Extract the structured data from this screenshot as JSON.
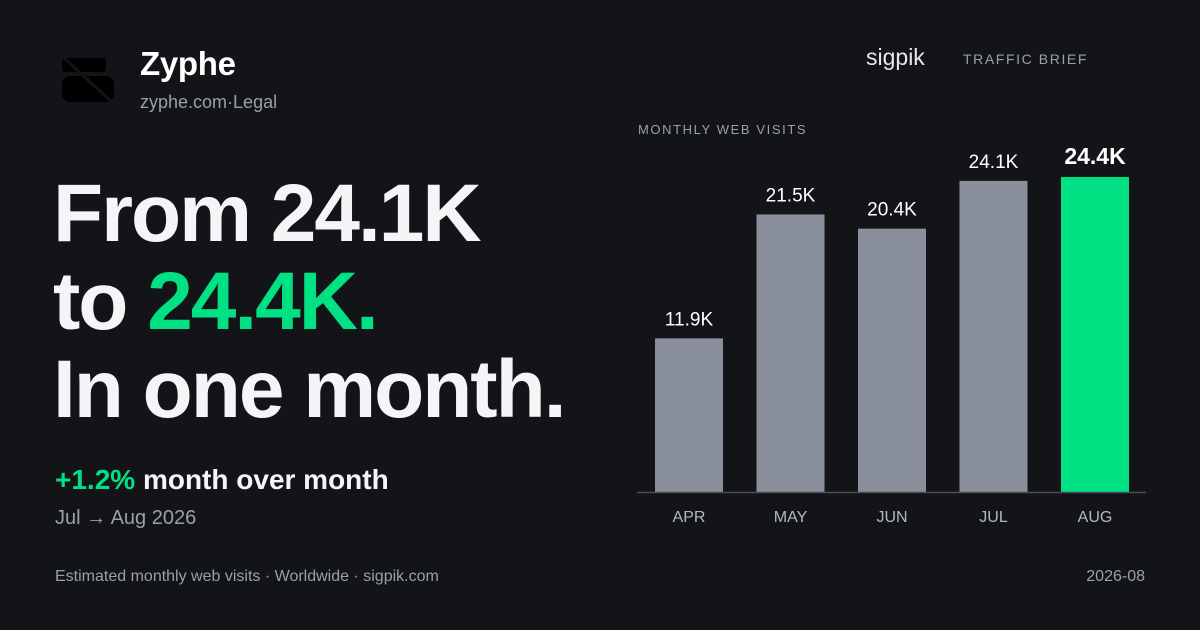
{
  "brand": {
    "name": "Zyphe",
    "domain": "zyphe.com",
    "separator": "·",
    "category": "Legal"
  },
  "publisher": {
    "name": "sigpik",
    "label": "TRAFFIC BRIEF"
  },
  "headline": {
    "line1": "From 24.1K",
    "line2_prefix": "to ",
    "line2_highlight": "24.4K.",
    "line3": "In one month."
  },
  "change": {
    "value": "+1.2%",
    "text": " month over month",
    "period": "Jul → Aug 2026"
  },
  "footer": {
    "left": "Estimated monthly web visits · Worldwide · sigpik.com",
    "right": "2026-08"
  },
  "colors": {
    "background": "#121418",
    "accent": "#00e184",
    "bar": "#8a8f9c",
    "muted_text": "#9aa0ab"
  },
  "chart_data": {
    "type": "bar",
    "title": "MONTHLY WEB VISITS",
    "categories": [
      "APR",
      "MAY",
      "JUN",
      "JUL",
      "AUG"
    ],
    "values": [
      11900,
      21500,
      20400,
      24100,
      24400
    ],
    "value_labels": [
      "11.9K",
      "21.5K",
      "20.4K",
      "24.1K",
      "24.4K"
    ],
    "highlight_index": 4,
    "ylim": [
      0,
      24400
    ],
    "grid": false,
    "legend": "none"
  }
}
